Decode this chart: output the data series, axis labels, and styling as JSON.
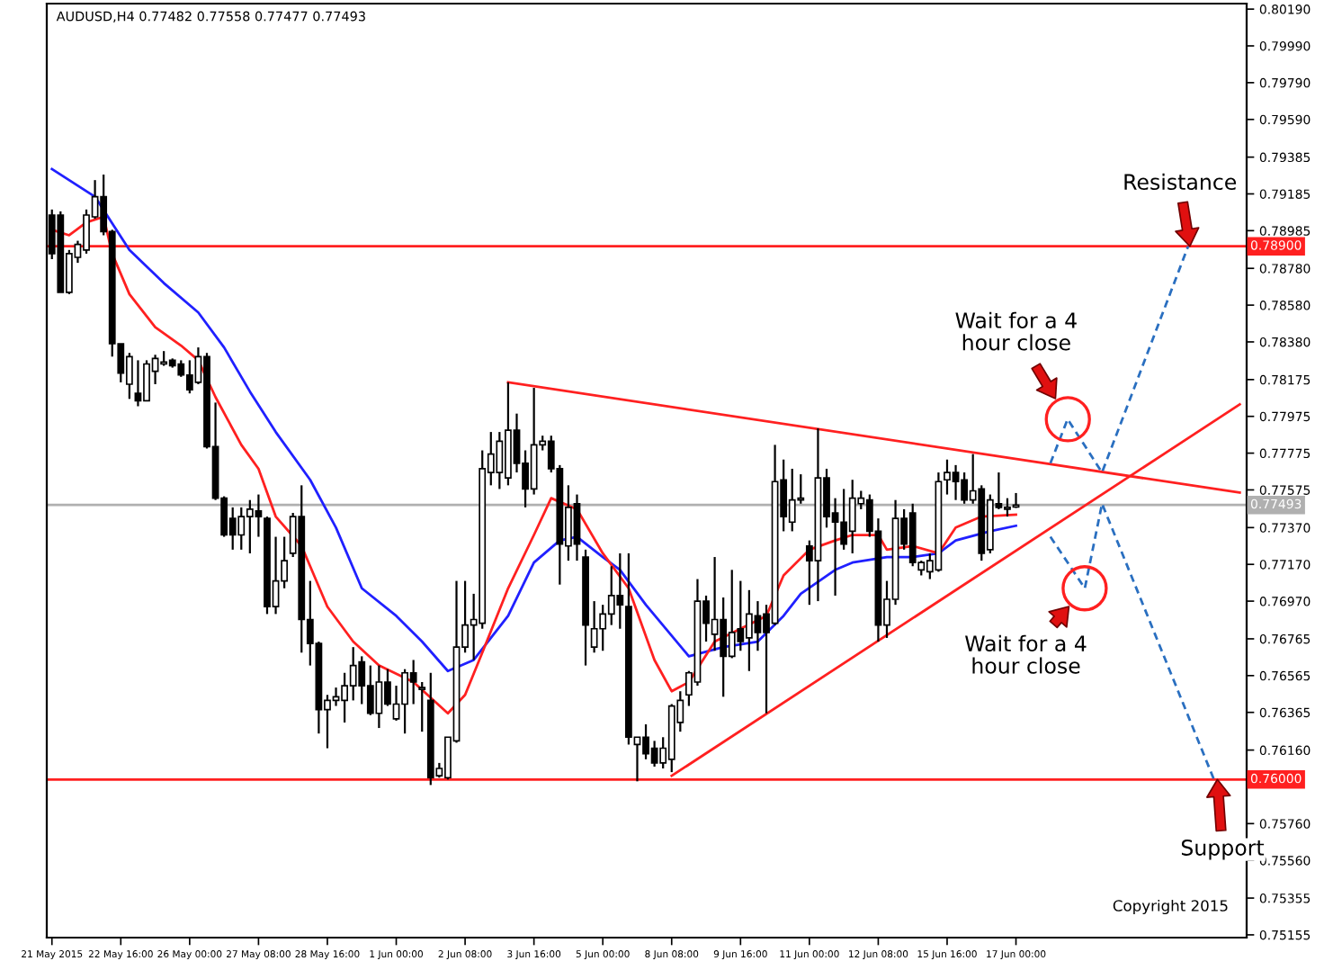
{
  "chart_data": {
    "type": "candlestick",
    "title": "AUDUSD,H4 0.77482 0.77558 0.77477 0.77493",
    "categories": [
      "21 May 2015",
      null,
      null,
      null,
      null,
      null,
      null,
      null,
      "22 May 16:00",
      null,
      null,
      null,
      null,
      null,
      null,
      null,
      "26 May 00:00",
      null,
      null,
      null,
      null,
      null,
      null,
      null,
      "27 May 08:00",
      null,
      null,
      null,
      null,
      null,
      null,
      null,
      "28 May 16:00",
      null,
      null,
      null,
      null,
      null,
      null,
      null,
      "1 Jun 00:00",
      null,
      null,
      null,
      null,
      null,
      null,
      null,
      "2 Jun 08:00",
      null,
      null,
      null,
      null,
      null,
      null,
      null,
      "3 Jun 16:00",
      null,
      null,
      null,
      null,
      null,
      null,
      null,
      "5 Jun 00:00",
      null,
      null,
      null,
      null,
      null,
      null,
      null,
      "8 Jun 08:00",
      null,
      null,
      null,
      null,
      null,
      null,
      null,
      "9 Jun 16:00",
      null,
      null,
      null,
      null,
      null,
      null,
      null,
      "11 Jun 00:00",
      null,
      null,
      null,
      null,
      null,
      null,
      null,
      "12 Jun 08:00",
      null,
      null,
      null,
      null,
      null,
      null,
      null,
      "15 Jun 16:00",
      null,
      null,
      null,
      null,
      null,
      null,
      null,
      "17 Jun 00:00",
      null,
      null,
      null,
      null,
      null,
      null,
      null,
      null,
      null,
      null,
      null,
      null,
      null,
      null,
      null,
      null,
      null,
      null,
      null,
      null,
      null,
      null,
      null,
      null,
      null,
      null,
      null
    ],
    "ylim": [
      0.7514,
      0.8022
    ],
    "yticks": [
      {
        "value": 0.8019,
        "label": "0.80190"
      },
      {
        "value": 0.7999,
        "label": "0.79990"
      },
      {
        "value": 0.7979,
        "label": "0.79790"
      },
      {
        "value": 0.7959,
        "label": "0.79590"
      },
      0.79385,
      0.79185,
      0.78985,
      {
        "value": 0.7878,
        "label": "0.78780"
      },
      {
        "value": 0.7858,
        "label": "0.78580"
      },
      {
        "value": 0.7838,
        "label": "0.78380"
      },
      0.78175,
      0.77975,
      0.77775,
      0.77575,
      {
        "value": 0.7737,
        "label": "0.77370"
      },
      {
        "value": 0.7717,
        "label": "0.77170"
      },
      {
        "value": 0.7697,
        "label": "0.76970"
      },
      0.76765,
      0.76565,
      0.76365,
      {
        "value": 0.7616,
        "label": "0.76160"
      },
      {
        "value": 0.7576,
        "label": "0.75760"
      },
      {
        "value": 0.7556,
        "label": "0.75560"
      },
      0.75355,
      0.75155
    ],
    "ref_lines": [
      {
        "axis": "y",
        "value": 0.789,
        "label": "0.78900",
        "color": "#ff2020"
      },
      {
        "axis": "y",
        "value": 0.76,
        "label": "0.76000",
        "color": "#ff2020"
      },
      {
        "axis": "y",
        "value": 0.77493,
        "label": "0.77493",
        "color": "#b0b0b0"
      }
    ],
    "series": [
      {
        "type": "line",
        "color": "#2020ff",
        "values": [
          0.7932,
          null,
          null,
          null,
          null,
          0.7917,
          null,
          null,
          null,
          0.7888,
          null,
          null,
          null,
          0.787,
          null,
          null,
          null,
          0.7854,
          null,
          null,
          0.7835,
          null,
          null,
          0.7811,
          null,
          null,
          0.7789,
          null,
          null,
          null,
          0.7763,
          null,
          null,
          0.7737,
          null,
          null,
          0.7704,
          null,
          null,
          null,
          0.7689,
          null,
          null,
          0.7675,
          null,
          null,
          0.7659,
          null,
          null,
          0.7665,
          null,
          null,
          null,
          0.7689,
          null,
          null,
          0.7718,
          null,
          null,
          0.773,
          null,
          0.7732,
          null,
          null,
          0.7721,
          null,
          0.7714,
          null,
          null,
          0.7695,
          null,
          null,
          null,
          null,
          0.7667,
          null,
          null,
          null,
          0.7672,
          null,
          null,
          null,
          0.7675,
          null,
          null,
          0.7689,
          null,
          0.7701,
          null,
          null,
          null,
          0.7714,
          null,
          0.7718,
          null,
          null,
          null,
          0.7721,
          null,
          null,
          0.7721,
          null,
          null,
          0.7723,
          null,
          0.773,
          null,
          null,
          null,
          0.7735,
          null,
          null,
          0.7738,
          null,
          null,
          null,
          null,
          null,
          null,
          null,
          null,
          null,
          null,
          null,
          null,
          null,
          null,
          null,
          null,
          null,
          null,
          null,
          null,
          null,
          null,
          null,
          null,
          null,
          null,
          null
        ]
      },
      {
        "type": "line",
        "color": "#ff2020",
        "values": [
          0.7899,
          null,
          0.7896,
          null,
          0.7903,
          null,
          0.7906,
          0.7886,
          null,
          0.7864,
          null,
          null,
          0.7846,
          null,
          null,
          0.7836,
          null,
          0.7828,
          null,
          0.7808,
          null,
          null,
          0.7782,
          null,
          0.7769,
          null,
          0.7743,
          null,
          null,
          0.7727,
          null,
          null,
          0.7694,
          null,
          null,
          0.7675,
          null,
          null,
          0.7662,
          null,
          null,
          null,
          0.7653,
          null,
          null,
          null,
          0.7636,
          null,
          0.7646,
          null,
          0.7669,
          null,
          null,
          0.7704,
          null,
          null,
          0.7733,
          null,
          0.7753,
          null,
          null,
          0.7747,
          null,
          null,
          0.7723,
          null,
          null,
          0.7704,
          null,
          null,
          0.7665,
          null,
          0.7648,
          null,
          0.7653,
          null,
          null,
          0.7675,
          null,
          null,
          0.7682,
          null,
          null,
          0.7689,
          null,
          0.7711,
          null,
          null,
          0.7725,
          null,
          null,
          0.773,
          null,
          0.7733,
          null,
          null,
          0.7733,
          0.7725,
          null,
          null,
          0.7727,
          null,
          null,
          0.7723,
          null,
          0.7737,
          null,
          null,
          0.7743,
          null,
          null,
          null,
          0.7744,
          null,
          null,
          null,
          null,
          null,
          null,
          null,
          null,
          null,
          null,
          null,
          null,
          null,
          null,
          null,
          null,
          null,
          null,
          null,
          null,
          null,
          null,
          null,
          null,
          null,
          null,
          null
        ]
      },
      {
        "type": "line",
        "color": "#ff2020",
        "values": [
          null,
          null,
          null,
          null,
          null,
          null,
          null,
          null,
          null,
          null,
          null,
          null,
          null,
          null,
          null,
          null,
          null,
          null,
          null,
          null,
          null,
          null,
          null,
          null,
          null,
          null,
          null,
          null,
          null,
          null,
          null,
          null,
          null,
          null,
          null,
          null,
          null,
          null,
          null,
          null,
          null,
          null,
          null,
          null,
          null,
          null,
          null,
          null,
          null,
          null,
          null,
          null,
          null,
          0.7816,
          null,
          null,
          null,
          null,
          null,
          null,
          null,
          null,
          null,
          null,
          null,
          null,
          null,
          null,
          null,
          null,
          null,
          null,
          null,
          null,
          null,
          null,
          null,
          null,
          null,
          null,
          null,
          null,
          null,
          null,
          null,
          null,
          null,
          null,
          null,
          null,
          null,
          null,
          null,
          null,
          null,
          null,
          null,
          null,
          null,
          null,
          null,
          null,
          null,
          null,
          null,
          null,
          null,
          null,
          null,
          null,
          null,
          null,
          null,
          null,
          null,
          null,
          null,
          null,
          null,
          null,
          null,
          null,
          null,
          null,
          null,
          null,
          null,
          null,
          null,
          null,
          null,
          null,
          null,
          null,
          null,
          null,
          null,
          null,
          0.7756,
          null
        ]
      },
      {
        "type": "line",
        "color": "#ff2020",
        "values": [
          null,
          null,
          null,
          null,
          null,
          null,
          null,
          null,
          null,
          null,
          null,
          null,
          null,
          null,
          null,
          null,
          null,
          null,
          null,
          null,
          null,
          null,
          null,
          null,
          null,
          null,
          null,
          null,
          null,
          null,
          null,
          null,
          null,
          null,
          null,
          null,
          null,
          null,
          null,
          null,
          null,
          null,
          null,
          null,
          null,
          null,
          null,
          null,
          null,
          null,
          null,
          null,
          null,
          null,
          null,
          null,
          null,
          null,
          null,
          null,
          null,
          null,
          null,
          null,
          null,
          null,
          null,
          null,
          null,
          null,
          null,
          null,
          0.7602,
          null,
          null,
          null,
          null,
          null,
          null,
          null,
          null,
          null,
          null,
          null,
          null,
          null,
          null,
          null,
          null,
          null,
          null,
          null,
          null,
          null,
          null,
          null,
          null,
          null,
          null,
          null,
          null,
          null,
          null,
          null,
          null,
          null,
          null,
          null,
          null,
          null,
          null,
          null,
          null,
          null,
          null,
          null,
          null,
          null,
          null,
          null,
          null,
          null,
          null,
          null,
          null,
          null,
          null,
          null,
          null,
          null,
          null,
          null,
          null,
          null,
          null,
          null,
          null,
          null,
          0.7804,
          null
        ]
      },
      {
        "type": "line",
        "color": "#2a6fc0",
        "line_style": "dashed",
        "values": [
          null,
          null,
          null,
          null,
          null,
          null,
          null,
          null,
          null,
          null,
          null,
          null,
          null,
          null,
          null,
          null,
          null,
          null,
          null,
          null,
          null,
          null,
          null,
          null,
          null,
          null,
          null,
          null,
          null,
          null,
          null,
          null,
          null,
          null,
          null,
          null,
          null,
          null,
          null,
          null,
          null,
          null,
          null,
          null,
          null,
          null,
          null,
          null,
          null,
          null,
          null,
          null,
          null,
          null,
          null,
          null,
          null,
          null,
          null,
          null,
          null,
          null,
          null,
          null,
          null,
          null,
          null,
          null,
          null,
          null,
          null,
          null,
          null,
          null,
          null,
          null,
          null,
          null,
          null,
          null,
          null,
          null,
          null,
          null,
          null,
          null,
          null,
          null,
          null,
          null,
          null,
          null,
          null,
          null,
          null,
          null,
          null,
          null,
          null,
          null,
          null,
          null,
          null,
          null,
          null,
          null,
          null,
          null,
          null,
          null,
          null,
          null,
          null,
          null,
          null,
          null,
          0.7772,
          null,
          0.7796,
          null,
          null,
          null,
          0.7767,
          null,
          null,
          null,
          null,
          null,
          null,
          null,
          null,
          null,
          0.789,
          null,
          null,
          null,
          null,
          null,
          null,
          null
        ]
      },
      {
        "type": "line",
        "color": "#2a6fc0",
        "line_style": "dashed",
        "values": [
          null,
          null,
          null,
          null,
          null,
          null,
          null,
          null,
          null,
          null,
          null,
          null,
          null,
          null,
          null,
          null,
          null,
          null,
          null,
          null,
          null,
          null,
          null,
          null,
          null,
          null,
          null,
          null,
          null,
          null,
          null,
          null,
          null,
          null,
          null,
          null,
          null,
          null,
          null,
          null,
          null,
          null,
          null,
          null,
          null,
          null,
          null,
          null,
          null,
          null,
          null,
          null,
          null,
          null,
          null,
          null,
          null,
          null,
          null,
          null,
          null,
          null,
          null,
          null,
          null,
          null,
          null,
          null,
          null,
          null,
          null,
          null,
          null,
          null,
          null,
          null,
          null,
          null,
          null,
          null,
          null,
          null,
          null,
          null,
          null,
          null,
          null,
          null,
          null,
          null,
          null,
          null,
          null,
          null,
          null,
          null,
          null,
          null,
          null,
          null,
          null,
          null,
          null,
          null,
          null,
          null,
          null,
          null,
          null,
          null,
          null,
          null,
          null,
          null,
          null,
          null,
          0.7732,
          null,
          null,
          null,
          0.7704,
          null,
          0.775,
          null,
          null,
          null,
          null,
          null,
          null,
          null,
          null,
          null,
          null,
          null,
          null,
          0.76,
          null,
          null,
          null,
          null
        ]
      }
    ],
    "color": "#000000",
    "ohlc": [
      [
        0.7907,
        0.791,
        0.7883,
        0.7886
      ],
      [
        0.7907,
        0.7909,
        0.7865,
        0.7865
      ],
      [
        0.7865,
        0.7888,
        0.7864,
        0.7886
      ],
      [
        0.7884,
        0.7893,
        0.7881,
        0.7891
      ],
      [
        0.7888,
        0.791,
        0.7886,
        0.7907
      ],
      [
        0.7906,
        0.7926,
        0.7905,
        0.7917
      ],
      [
        0.7917,
        0.7929,
        0.7896,
        0.7898
      ],
      [
        0.7898,
        0.7899,
        0.783,
        0.7837
      ],
      [
        0.7837,
        0.7837,
        0.7816,
        0.7821
      ],
      [
        0.7815,
        0.7832,
        0.7807,
        0.783
      ],
      [
        0.781,
        0.7828,
        0.7803,
        0.7806
      ],
      [
        0.7806,
        0.7828,
        0.7806,
        0.7826
      ],
      [
        0.7822,
        0.7831,
        0.7815,
        0.7829
      ],
      [
        0.7826,
        0.7833,
        0.7825,
        0.7827
      ],
      [
        0.7828,
        0.7829,
        0.7824,
        0.7825
      ],
      [
        0.7826,
        0.7828,
        0.7819,
        0.782
      ],
      [
        0.782,
        0.7828,
        0.781,
        0.7812
      ],
      [
        0.7816,
        0.7835,
        0.7815,
        0.783
      ],
      [
        0.783,
        0.7832,
        0.778,
        0.7781
      ],
      [
        0.7781,
        0.7805,
        0.7752,
        0.7753
      ],
      [
        0.7753,
        0.7754,
        0.7732,
        0.7733
      ],
      [
        0.7742,
        0.7748,
        0.7725,
        0.7733
      ],
      [
        0.7733,
        0.7748,
        0.7725,
        0.7743
      ],
      [
        0.7743,
        0.7752,
        0.7723,
        0.7747
      ],
      [
        0.7746,
        0.7755,
        0.7732,
        0.7743
      ],
      [
        0.7742,
        0.7743,
        0.769,
        0.7694
      ],
      [
        0.7694,
        0.7732,
        0.769,
        0.7708
      ],
      [
        0.7708,
        0.7732,
        0.7704,
        0.7719
      ],
      [
        0.7723,
        0.7745,
        0.7721,
        0.7743
      ],
      [
        0.7743,
        0.776,
        0.7669,
        0.7687
      ],
      [
        0.7687,
        0.7708,
        0.7662,
        0.7674
      ],
      [
        0.7674,
        0.7675,
        0.7625,
        0.7638
      ],
      [
        0.7638,
        0.7646,
        0.7617,
        0.7643
      ],
      [
        0.7643,
        0.765,
        0.764,
        0.7645
      ],
      [
        0.7643,
        0.7658,
        0.7631,
        0.7651
      ],
      [
        0.7651,
        0.7672,
        0.7643,
        0.7662
      ],
      [
        0.7664,
        0.7667,
        0.7641,
        0.7651
      ],
      [
        0.7651,
        0.7662,
        0.7635,
        0.7636
      ],
      [
        0.7636,
        0.7662,
        0.7628,
        0.7653
      ],
      [
        0.7653,
        0.766,
        0.764,
        0.7641
      ],
      [
        0.7633,
        0.7651,
        0.7632,
        0.7641
      ],
      [
        0.7641,
        0.766,
        0.7625,
        0.7658
      ],
      [
        0.7658,
        0.7665,
        0.7641,
        0.7653
      ],
      [
        0.7649,
        0.7653,
        0.7626,
        0.765
      ],
      [
        0.7643,
        0.7658,
        0.7597,
        0.7601
      ],
      [
        0.7602,
        0.7609,
        0.7601,
        0.7606
      ],
      [
        0.7601,
        0.7623,
        0.76,
        0.7623
      ],
      [
        0.7621,
        0.7708,
        0.762,
        0.7672
      ],
      [
        0.7672,
        0.7708,
        0.7669,
        0.7684
      ],
      [
        0.7684,
        0.7701,
        0.7665,
        0.7687
      ],
      [
        0.7685,
        0.7779,
        0.7682,
        0.7769
      ],
      [
        0.7767,
        0.7789,
        0.776,
        0.7777
      ],
      [
        0.7767,
        0.7789,
        0.7758,
        0.7784
      ],
      [
        0.7764,
        0.7816,
        0.776,
        0.779
      ],
      [
        0.779,
        0.7799,
        0.7767,
        0.7772
      ],
      [
        0.7772,
        0.7779,
        0.7748,
        0.7758
      ],
      [
        0.7758,
        0.7813,
        0.7755,
        0.7782
      ],
      [
        0.7782,
        0.7787,
        0.7779,
        0.7784
      ],
      [
        0.7784,
        0.7787,
        0.7767,
        0.7769
      ],
      [
        0.7769,
        0.7771,
        0.7706,
        0.7728
      ],
      [
        0.7727,
        0.776,
        0.7719,
        0.7748
      ],
      [
        0.775,
        0.7755,
        0.7719,
        0.7728
      ],
      [
        0.7721,
        0.7725,
        0.7662,
        0.7684
      ],
      [
        0.7672,
        0.7697,
        0.7669,
        0.7682
      ],
      [
        0.7682,
        0.7695,
        0.767,
        0.769
      ],
      [
        0.769,
        0.7716,
        0.7684,
        0.77
      ],
      [
        0.77,
        0.7723,
        0.7682,
        0.7695
      ],
      [
        0.7694,
        0.7723,
        0.7619,
        0.7623
      ],
      [
        0.7619,
        0.7623,
        0.7599,
        0.7623
      ],
      [
        0.7623,
        0.763,
        0.7611,
        0.7614
      ],
      [
        0.7617,
        0.7621,
        0.7607,
        0.7609
      ],
      [
        0.7609,
        0.7623,
        0.7606,
        0.7617
      ],
      [
        0.7611,
        0.7641,
        0.7604,
        0.764
      ],
      [
        0.7631,
        0.7648,
        0.7626,
        0.7643
      ],
      [
        0.7646,
        0.7659,
        0.764,
        0.7658
      ],
      [
        0.7653,
        0.7709,
        0.7651,
        0.7697
      ],
      [
        0.7697,
        0.77,
        0.7675,
        0.7685
      ],
      [
        0.7679,
        0.7721,
        0.767,
        0.7687
      ],
      [
        0.7687,
        0.7699,
        0.7645,
        0.7667
      ],
      [
        0.7667,
        0.7714,
        0.7666,
        0.768
      ],
      [
        0.7682,
        0.7708,
        0.767,
        0.7675
      ],
      [
        0.7677,
        0.7703,
        0.7659,
        0.769
      ],
      [
        0.7689,
        0.7697,
        0.767,
        0.768
      ],
      [
        0.769,
        0.7695,
        0.7636,
        0.768
      ],
      [
        0.7685,
        0.7782,
        0.7684,
        0.7762
      ],
      [
        0.7763,
        0.7774,
        0.7735,
        0.7743
      ],
      [
        0.774,
        0.7769,
        0.7735,
        0.7752
      ],
      [
        0.7752,
        0.7766,
        0.775,
        0.7753
      ],
      [
        0.7727,
        0.773,
        0.7695,
        0.7719
      ],
      [
        0.7719,
        0.7791,
        0.7697,
        0.7764
      ],
      [
        0.7764,
        0.7769,
        0.7737,
        0.7743
      ],
      [
        0.7745,
        0.7753,
        0.77,
        0.774
      ],
      [
        0.774,
        0.7758,
        0.7725,
        0.7728
      ],
      [
        0.7735,
        0.7763,
        0.7723,
        0.7753
      ],
      [
        0.775,
        0.7757,
        0.7747,
        0.7753
      ],
      [
        0.7752,
        0.7755,
        0.7732,
        0.7735
      ],
      [
        0.7735,
        0.7742,
        0.7675,
        0.7684
      ],
      [
        0.7684,
        0.7708,
        0.7677,
        0.7698
      ],
      [
        0.7698,
        0.7752,
        0.7695,
        0.7742
      ],
      [
        0.7742,
        0.7747,
        0.7725,
        0.7728
      ],
      [
        0.7745,
        0.775,
        0.7716,
        0.7718
      ],
      [
        0.7714,
        0.7719,
        0.7711,
        0.7718
      ],
      [
        0.7713,
        0.7723,
        0.7709,
        0.7719
      ],
      [
        0.7714,
        0.7767,
        0.7713,
        0.7762
      ],
      [
        0.7763,
        0.7774,
        0.7755,
        0.7767
      ],
      [
        0.7767,
        0.7771,
        0.7752,
        0.7762
      ],
      [
        0.7763,
        0.7767,
        0.775,
        0.7752
      ],
      [
        0.7752,
        0.7777,
        0.775,
        0.7757
      ],
      [
        0.7758,
        0.776,
        0.7719,
        0.7723
      ],
      [
        0.7725,
        0.7755,
        0.7723,
        0.7752
      ],
      [
        0.775,
        0.7767,
        0.7747,
        0.7748
      ],
      [
        0.7747,
        0.7753,
        0.7743,
        0.7748
      ],
      [
        0.77482,
        0.77558,
        0.77477,
        0.77493
      ],
      null,
      null,
      null,
      null,
      null,
      null,
      null,
      null,
      null,
      null,
      null,
      null,
      null,
      null,
      null,
      null,
      null,
      null,
      null,
      null,
      null,
      null,
      null,
      null,
      null,
      null,
      null
    ],
    "annotations": [
      {
        "text": "Resistance",
        "y": 0.789
      },
      "Wait for a 4\nhour close",
      "Wait for a 4\nhour close",
      {
        "text": "Support",
        "y": 0.76
      },
      "Copyright 2015"
    ]
  }
}
